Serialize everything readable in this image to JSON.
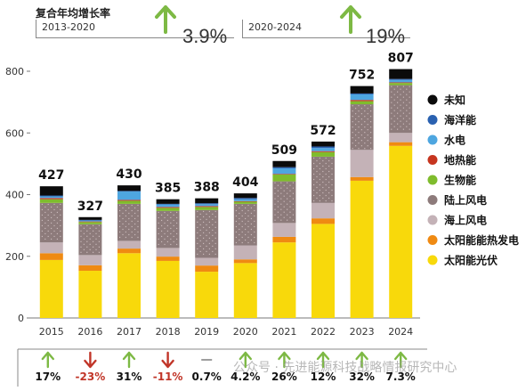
{
  "cagr": {
    "title": "复合年均增长率",
    "left": {
      "period": "2013-2020",
      "value": "3.9%"
    },
    "right": {
      "period": "2020-2024",
      "value": "19%"
    }
  },
  "colors": {
    "unknown": "#0b0b0b",
    "ocean": "#2a61b0",
    "hydro": "#4ea6e0",
    "geothermal": "#c6351f",
    "bio": "#7fbc2d",
    "onshore_wind": "#8d7b7b",
    "offshore_wind": "#c4b2b7",
    "csp": "#ef8a12",
    "pv": "#f8d90b",
    "arrow_up": "#7db944",
    "arrow_down": "#c13528",
    "neutral": "#9e9e9e"
  },
  "chart_data": {
    "type": "bar",
    "stacked": true,
    "categories": [
      "2015",
      "2016",
      "2017",
      "2018",
      "2019",
      "2020",
      "2021",
      "2022",
      "2023",
      "2024"
    ],
    "totals": [
      427,
      327,
      430,
      385,
      388,
      404,
      509,
      572,
      752,
      807
    ],
    "ylim": [
      0,
      800
    ],
    "yticks": [
      0,
      200,
      400,
      600,
      800
    ],
    "grid": false,
    "legend_position": "right",
    "series": [
      {
        "key": "pv",
        "name": "太阳能光伏",
        "values": [
          188,
          153,
          210,
          185,
          150,
          178,
          245,
          305,
          445,
          558
        ]
      },
      {
        "key": "csp",
        "name": "太阳能能热发电",
        "values": [
          22,
          18,
          15,
          14,
          20,
          12,
          18,
          18,
          12,
          12
        ]
      },
      {
        "key": "offshore_wind",
        "name": "海上风电",
        "values": [
          35,
          33,
          25,
          28,
          25,
          45,
          45,
          50,
          88,
          30
        ]
      },
      {
        "key": "onshore_wind",
        "name": "陆上风电",
        "values": [
          128,
          100,
          120,
          120,
          155,
          135,
          135,
          150,
          148,
          155
        ]
      },
      {
        "key": "bio",
        "name": "生物能",
        "values": [
          12,
          7,
          10,
          10,
          10,
          7,
          22,
          15,
          10,
          7
        ]
      },
      {
        "key": "geothermal",
        "name": "地热能",
        "values": [
          4,
          2,
          3,
          3,
          3,
          2,
          2,
          3,
          4,
          2
        ]
      },
      {
        "key": "hydro",
        "name": "水电",
        "values": [
          5,
          3,
          27,
          8,
          6,
          6,
          18,
          10,
          18,
          8
        ]
      },
      {
        "key": "ocean",
        "name": "海洋能",
        "values": [
          3,
          2,
          2,
          2,
          3,
          4,
          4,
          5,
          3,
          3
        ]
      },
      {
        "key": "unknown",
        "name": "未知",
        "values": [
          30,
          9,
          18,
          15,
          16,
          15,
          20,
          16,
          24,
          32
        ]
      }
    ],
    "growth": [
      {
        "label": "17%",
        "dir": "up"
      },
      {
        "label": "-23%",
        "dir": "down"
      },
      {
        "label": "31%",
        "dir": "up"
      },
      {
        "label": "-11%",
        "dir": "down"
      },
      {
        "label": "0.7%",
        "dir": "flat"
      },
      {
        "label": "4.2%",
        "dir": "up"
      },
      {
        "label": "26%",
        "dir": "up"
      },
      {
        "label": "12%",
        "dir": "up"
      },
      {
        "label": "32%",
        "dir": "up"
      },
      {
        "label": "7.3%",
        "dir": "up"
      }
    ],
    "legend_order": [
      "unknown",
      "ocean",
      "hydro",
      "geothermal",
      "bio",
      "onshore_wind",
      "offshore_wind",
      "csp",
      "pv"
    ]
  },
  "watermark": "公众号 · 先进能源科技战略情报研究中心"
}
